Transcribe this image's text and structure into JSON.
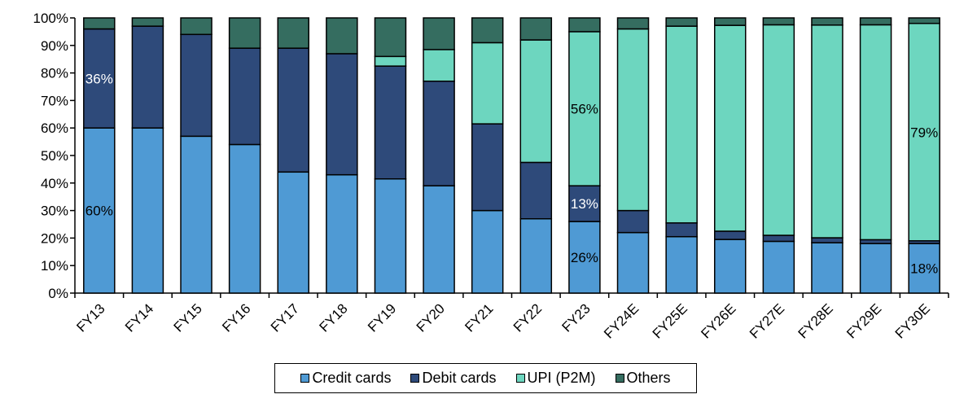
{
  "chart_data": {
    "type": "bar",
    "stacked": true,
    "title": "",
    "xlabel": "",
    "ylabel": "",
    "ylim": [
      0,
      100
    ],
    "y_ticks": [
      "0%",
      "10%",
      "20%",
      "30%",
      "40%",
      "50%",
      "60%",
      "70%",
      "80%",
      "90%",
      "100%"
    ],
    "grid": false,
    "legend_position": "bottom-center",
    "categories": [
      "FY13",
      "FY14",
      "FY15",
      "FY16",
      "FY17",
      "FY18",
      "FY19",
      "FY20",
      "FY21",
      "FY22",
      "FY23",
      "FY24E",
      "FY25E",
      "FY26E",
      "FY27E",
      "FY28E",
      "FY29E",
      "FY30E"
    ],
    "series": [
      {
        "name": "Credit cards",
        "color": "#4f9ad4",
        "values": [
          60,
          60,
          57,
          54,
          44,
          43,
          41.5,
          39,
          30,
          27,
          26,
          22,
          20.5,
          19.5,
          18.8,
          18.3,
          18,
          18
        ]
      },
      {
        "name": "Debit cards",
        "color": "#2e4a7a",
        "values": [
          36,
          37,
          37,
          35,
          45,
          44,
          41,
          38,
          31.5,
          20.5,
          13,
          8,
          5,
          3,
          2.2,
          1.8,
          1.4,
          1
        ]
      },
      {
        "name": "UPI (P2M)",
        "color": "#6dd6bf",
        "values": [
          0,
          0,
          0,
          0,
          0,
          0,
          3.5,
          11.5,
          29.5,
          44.5,
          56,
          66,
          71.5,
          74.8,
          76.5,
          77.3,
          78.1,
          79
        ]
      },
      {
        "name": "Others",
        "color": "#356d60",
        "values": [
          4,
          3,
          6,
          11,
          11,
          13,
          14,
          11.5,
          9,
          8,
          5,
          4,
          3,
          2.7,
          2.5,
          2.6,
          2.5,
          2
        ]
      }
    ],
    "annotations": [
      {
        "category": "FY13",
        "series": "Credit cards",
        "text": "60%",
        "color": "#000000"
      },
      {
        "category": "FY13",
        "series": "Debit cards",
        "text": "36%",
        "color": "#ffffff"
      },
      {
        "category": "FY23",
        "series": "Credit cards",
        "text": "26%",
        "color": "#000000"
      },
      {
        "category": "FY23",
        "series": "Debit cards",
        "text": "13%",
        "color": "#ffffff"
      },
      {
        "category": "FY23",
        "series": "UPI (P2M)",
        "text": "56%",
        "color": "#000000"
      },
      {
        "category": "FY30E",
        "series": "Credit cards",
        "text": "18%",
        "color": "#000000"
      },
      {
        "category": "FY30E",
        "series": "UPI (P2M)",
        "text": "79%",
        "color": "#000000"
      }
    ]
  },
  "legend": {
    "items": [
      {
        "label": "Credit cards",
        "color": "#4f9ad4"
      },
      {
        "label": "Debit cards",
        "color": "#2e4a7a"
      },
      {
        "label": "UPI (P2M)",
        "color": "#6dd6bf"
      },
      {
        "label": "Others",
        "color": "#356d60"
      }
    ]
  }
}
